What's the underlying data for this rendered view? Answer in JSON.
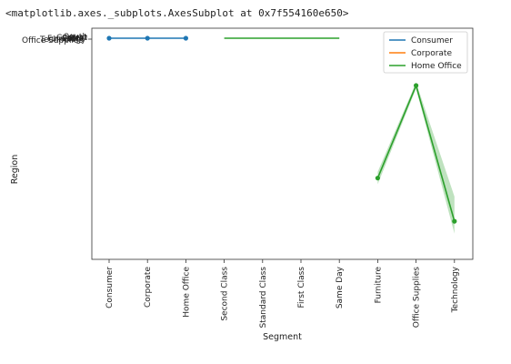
{
  "output_repr": "<matplotlib.axes._subplots.AxesSubplot at 0x7f554160e650>",
  "chart_data": {
    "type": "line",
    "xlabel": "Segment",
    "ylabel": "Region",
    "x_categories": [
      "Consumer",
      "Corporate",
      "Home Office",
      "Second Class",
      "Standard Class",
      "First Class",
      "Same Day",
      "Furniture",
      "Office Supplies",
      "Technology"
    ],
    "y_overlapping_tick_labels": [
      "Office Supplies",
      "Furniture",
      "Technology",
      "Central",
      "East",
      "South",
      "West"
    ],
    "legend": {
      "placement": "top-right",
      "entries": [
        "Consumer",
        "Corporate",
        "Home Office"
      ]
    },
    "series": [
      {
        "name": "Consumer",
        "color": "#1f77b4",
        "marker": true,
        "points": [
          {
            "x": "Consumer",
            "y": 0.0
          },
          {
            "x": "Corporate",
            "y": 0.0
          },
          {
            "x": "Home Office",
            "y": 0.0
          }
        ]
      },
      {
        "name": "Home Office",
        "color": "#2ca02c",
        "marker": false,
        "points": [
          {
            "x": "Second Class",
            "y": 0.0
          },
          {
            "x": "Standard Class",
            "y": 0.0
          },
          {
            "x": "First Class",
            "y": 0.0
          },
          {
            "x": "Same Day",
            "y": 0.0
          }
        ]
      },
      {
        "name": "Home Office",
        "color": "#2ca02c",
        "marker": true,
        "confidence_band": true,
        "points": [
          {
            "x": "Furniture",
            "y": 0.68
          },
          {
            "x": "Office Supplies",
            "y": 0.23
          },
          {
            "x": "Technology",
            "y": 0.89
          }
        ],
        "band_low": [
          0.71,
          0.245,
          0.95
        ],
        "band_high": [
          0.65,
          0.215,
          0.77
        ]
      }
    ],
    "grid": false
  }
}
